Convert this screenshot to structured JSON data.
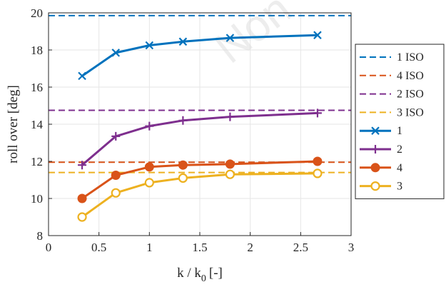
{
  "chart_data": {
    "type": "line",
    "title": "",
    "xlabel": "k / k",
    "xlabel_sub": "0",
    "xlabel_unit": "[-]",
    "ylabel": "roll over [deg]",
    "xlim": [
      0,
      3
    ],
    "ylim": [
      8,
      20
    ],
    "x_ticks": [
      0,
      0.5,
      1,
      1.5,
      2,
      2.5,
      3
    ],
    "x_tick_labels": [
      "0",
      "0.5",
      "1",
      "1.5",
      "2",
      "2.5",
      "3"
    ],
    "y_ticks": [
      8,
      10,
      12,
      14,
      16,
      18,
      20
    ],
    "y_tick_labels": [
      "8",
      "10",
      "12",
      "14",
      "16",
      "18",
      "20"
    ],
    "grid": true,
    "legend_position": "right",
    "watermark": "Non",
    "x": [
      0.333,
      0.667,
      1.0,
      1.333,
      1.8,
      2.667
    ],
    "reference_lines": [
      {
        "name": "1 ISO",
        "y": 19.85,
        "color": "#0072bd"
      },
      {
        "name": "4 ISO",
        "y": 11.95,
        "color": "#d95319"
      },
      {
        "name": "2 ISO",
        "y": 14.75,
        "color": "#7e2f8e"
      },
      {
        "name": "3 ISO",
        "y": 11.4,
        "color": "#edb120"
      }
    ],
    "series": [
      {
        "name": "1",
        "color": "#0072bd",
        "marker": "x",
        "values": [
          16.6,
          17.85,
          18.25,
          18.45,
          18.65,
          18.8
        ]
      },
      {
        "name": "2",
        "color": "#7e2f8e",
        "marker": "+",
        "values": [
          11.8,
          13.35,
          13.9,
          14.2,
          14.4,
          14.6
        ]
      },
      {
        "name": "4",
        "color": "#d95319",
        "marker": "circle-filled",
        "values": [
          10.0,
          11.25,
          11.7,
          11.8,
          11.85,
          12.0
        ]
      },
      {
        "name": "3",
        "color": "#edb120",
        "marker": "circle-open",
        "values": [
          9.0,
          10.3,
          10.85,
          11.1,
          11.3,
          11.35
        ]
      }
    ]
  }
}
